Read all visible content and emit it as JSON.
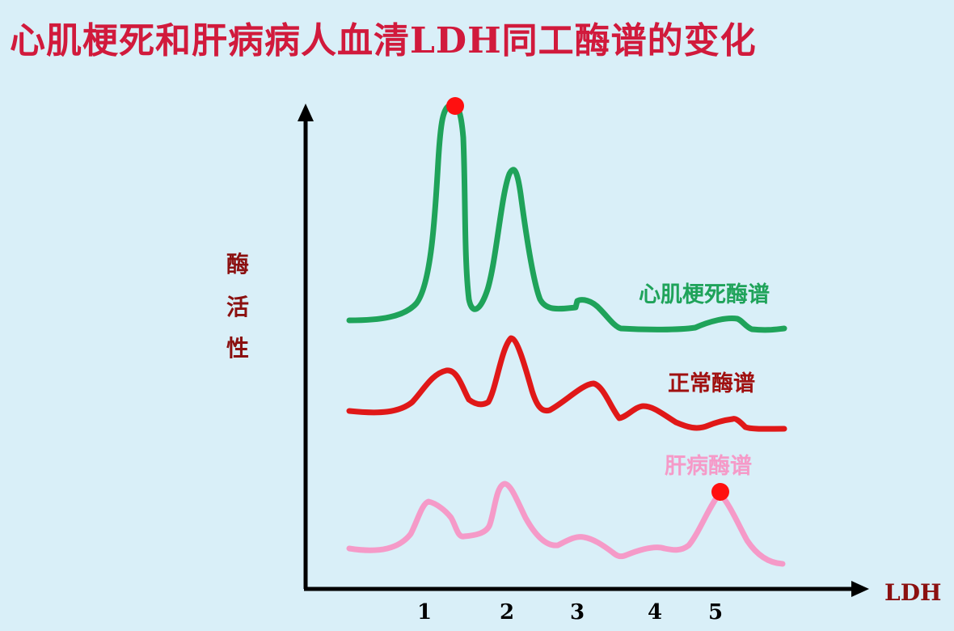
{
  "title": "心肌梗死和肝病病人血清LDH同工酶谱的变化",
  "y_axis_label": [
    "酶",
    "活",
    "性"
  ],
  "x_axis_label": "LDH",
  "x_ticks": [
    "1",
    "2",
    "3",
    "4",
    "5"
  ],
  "curves": [
    {
      "label": "心肌梗死酶谱",
      "color": "#1fa35a"
    },
    {
      "label": "正常酶谱",
      "color": "#e01818"
    },
    {
      "label": "肝病酶谱",
      "color": "#f59ac8"
    }
  ],
  "colors": {
    "title": "#d11a3c",
    "axis_label": "#8b1010",
    "marker": "#ff1010",
    "axis": "#000000"
  }
}
